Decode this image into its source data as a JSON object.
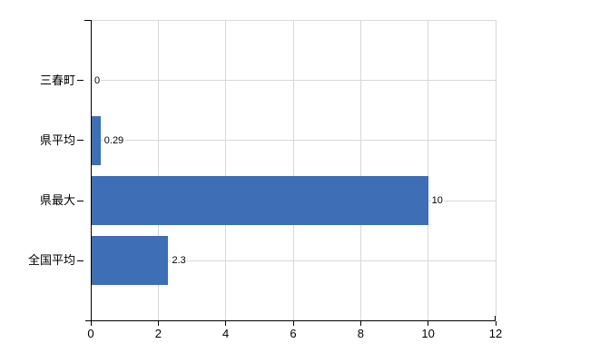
{
  "chart_data": {
    "type": "bar",
    "orientation": "horizontal",
    "title": "",
    "xlabel": "",
    "ylabel": "",
    "categories": [
      "三春町",
      "県平均",
      "県最大",
      "全国平均"
    ],
    "values": [
      0,
      0.29,
      10,
      2.3
    ],
    "value_labels": [
      "0",
      "0.29",
      "10",
      "2.3"
    ],
    "x_ticks": [
      0,
      2,
      4,
      6,
      8,
      10,
      12
    ],
    "x_tick_labels": [
      "0",
      "2",
      "4",
      "6",
      "8",
      "10",
      "12"
    ],
    "xlim": [
      0,
      12
    ],
    "grid": true,
    "legend": "none",
    "colors": {
      "bar": "#3e6eb5",
      "gridline": "#d8d8d8",
      "axis": "#000000",
      "text": "#000000",
      "background": "#ffffff"
    }
  }
}
